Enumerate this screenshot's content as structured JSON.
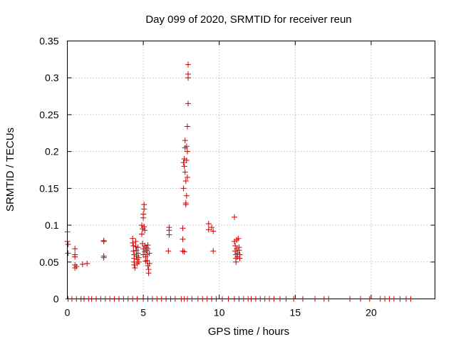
{
  "chart_data": {
    "type": "scatter",
    "title": "Day 099 of 2020, SRMTID for receiver reun",
    "xlabel": "GPS time / hours",
    "ylabel": "SRMTID / TECUs",
    "xlim": [
      0,
      24.2
    ],
    "ylim": [
      0,
      0.35
    ],
    "xticks": [
      0,
      5,
      10,
      15,
      20
    ],
    "yticks": [
      0,
      0.05,
      0.1,
      0.15,
      0.2,
      0.25,
      0.3,
      0.35
    ],
    "ytick_labels": [
      "0",
      "0.05",
      "0.1",
      "0.15",
      "0.2",
      "0.25",
      "0.3",
      "0.35"
    ],
    "grid": true,
    "marker": "+",
    "color": "#cc0000",
    "series": [
      {
        "name": "SRMTID",
        "points": [
          [
            0.0,
            0.091
          ],
          [
            0.0,
            0.078
          ],
          [
            0.05,
            0.074
          ],
          [
            0.05,
            0.062
          ],
          [
            0.05,
            0.0
          ],
          [
            0.5,
            0.068
          ],
          [
            0.5,
            0.06
          ],
          [
            0.5,
            0.057
          ],
          [
            0.5,
            0.046
          ],
          [
            0.5,
            0.042
          ],
          [
            0.6,
            0.044
          ],
          [
            0.3,
            0.0
          ],
          [
            0.6,
            0.0
          ],
          [
            0.9,
            0.0
          ],
          [
            1.0,
            0.047
          ],
          [
            1.3,
            0.048
          ],
          [
            1.1,
            0.0
          ],
          [
            1.4,
            0.0
          ],
          [
            1.6,
            0.0
          ],
          [
            1.9,
            0.0
          ],
          [
            2.4,
            0.079
          ],
          [
            2.4,
            0.078
          ],
          [
            2.4,
            0.058
          ],
          [
            2.4,
            0.056
          ],
          [
            2.2,
            0.0
          ],
          [
            2.5,
            0.0
          ],
          [
            2.8,
            0.0
          ],
          [
            3.1,
            0.0
          ],
          [
            3.4,
            0.0
          ],
          [
            3.7,
            0.0
          ],
          [
            4.0,
            0.0
          ],
          [
            4.3,
            0.082
          ],
          [
            4.3,
            0.076
          ],
          [
            4.35,
            0.072
          ],
          [
            4.35,
            0.065
          ],
          [
            4.4,
            0.06
          ],
          [
            4.4,
            0.055
          ],
          [
            4.4,
            0.05
          ],
          [
            4.4,
            0.046
          ],
          [
            4.45,
            0.042
          ],
          [
            4.5,
            0.078
          ],
          [
            4.5,
            0.071
          ],
          [
            4.55,
            0.066
          ],
          [
            4.55,
            0.058
          ],
          [
            4.6,
            0.053
          ],
          [
            4.6,
            0.048
          ],
          [
            4.65,
            0.07
          ],
          [
            4.65,
            0.062
          ],
          [
            4.7,
            0.056
          ],
          [
            4.7,
            0.05
          ],
          [
            4.3,
            0.0
          ],
          [
            4.6,
            0.0
          ],
          [
            4.9,
            0.1
          ],
          [
            4.9,
            0.088
          ],
          [
            4.95,
            0.095
          ],
          [
            4.95,
            0.075
          ],
          [
            5.0,
            0.115
          ],
          [
            5.0,
            0.11
          ],
          [
            5.0,
            0.068
          ],
          [
            5.0,
            0.06
          ],
          [
            5.05,
            0.128
          ],
          [
            5.05,
            0.122
          ],
          [
            5.05,
            0.098
          ],
          [
            5.1,
            0.093
          ],
          [
            5.1,
            0.072
          ],
          [
            5.1,
            0.064
          ],
          [
            5.15,
            0.057
          ],
          [
            5.15,
            0.051
          ],
          [
            5.2,
            0.07
          ],
          [
            5.2,
            0.066
          ],
          [
            5.25,
            0.06
          ],
          [
            5.25,
            0.052
          ],
          [
            5.3,
            0.073
          ],
          [
            5.3,
            0.068
          ],
          [
            5.3,
            0.045
          ],
          [
            5.35,
            0.04
          ],
          [
            5.35,
            0.035
          ],
          [
            5.4,
            0.048
          ],
          [
            5.4,
            0.062
          ],
          [
            5.0,
            0.0
          ],
          [
            5.3,
            0.0
          ],
          [
            5.6,
            0.0
          ],
          [
            5.9,
            0.0
          ],
          [
            6.2,
            0.0
          ],
          [
            6.5,
            0.0
          ],
          [
            6.7,
            0.097
          ],
          [
            6.7,
            0.093
          ],
          [
            6.7,
            0.087
          ],
          [
            6.65,
            0.065
          ],
          [
            6.8,
            0.0
          ],
          [
            7.1,
            0.0
          ],
          [
            7.5,
            0.0
          ],
          [
            7.6,
            0.096
          ],
          [
            7.6,
            0.081
          ],
          [
            7.6,
            0.065
          ],
          [
            7.7,
            0.064
          ],
          [
            7.65,
            0.15
          ],
          [
            7.65,
            0.185
          ],
          [
            7.7,
            0.19
          ],
          [
            7.7,
            0.18
          ],
          [
            7.75,
            0.215
          ],
          [
            7.75,
            0.205
          ],
          [
            7.75,
            0.172
          ],
          [
            7.8,
            0.16
          ],
          [
            7.8,
            0.13
          ],
          [
            7.8,
            0.128
          ],
          [
            7.85,
            0.207
          ],
          [
            7.85,
            0.188
          ],
          [
            7.85,
            0.14
          ],
          [
            7.9,
            0.234
          ],
          [
            7.9,
            0.2
          ],
          [
            7.9,
            0.165
          ],
          [
            7.95,
            0.318
          ],
          [
            7.95,
            0.305
          ],
          [
            7.95,
            0.3
          ],
          [
            7.95,
            0.265
          ],
          [
            7.7,
            0.0
          ],
          [
            7.9,
            0.0
          ],
          [
            8.2,
            0.0
          ],
          [
            8.6,
            0.0
          ],
          [
            8.9,
            0.0
          ],
          [
            9.3,
            0.102
          ],
          [
            9.3,
            0.094
          ],
          [
            9.5,
            0.097
          ],
          [
            9.6,
            0.092
          ],
          [
            9.6,
            0.065
          ],
          [
            9.2,
            0.0
          ],
          [
            9.5,
            0.0
          ],
          [
            9.8,
            0.0
          ],
          [
            10.2,
            0.0
          ],
          [
            10.6,
            0.0
          ],
          [
            11.0,
            0.111
          ],
          [
            11.0,
            0.078
          ],
          [
            11.05,
            0.072
          ],
          [
            11.05,
            0.065
          ],
          [
            11.1,
            0.06
          ],
          [
            11.1,
            0.055
          ],
          [
            11.1,
            0.05
          ],
          [
            11.15,
            0.08
          ],
          [
            11.15,
            0.068
          ],
          [
            11.2,
            0.062
          ],
          [
            11.2,
            0.057
          ],
          [
            11.25,
            0.082
          ],
          [
            11.3,
            0.07
          ],
          [
            11.3,
            0.066
          ],
          [
            11.35,
            0.06
          ],
          [
            11.35,
            0.055
          ],
          [
            11.0,
            0.0
          ],
          [
            11.3,
            0.0
          ],
          [
            11.6,
            0.0
          ],
          [
            11.9,
            0.0
          ],
          [
            12.1,
            0.0
          ],
          [
            12.4,
            0.0
          ],
          [
            12.7,
            0.0
          ],
          [
            13.0,
            0.0
          ],
          [
            13.3,
            0.0
          ],
          [
            13.6,
            0.0
          ],
          [
            14.0,
            0.0
          ],
          [
            14.4,
            0.0
          ],
          [
            14.9,
            0.0
          ],
          [
            15.5,
            0.0
          ],
          [
            16.3,
            0.0
          ],
          [
            16.9,
            0.0
          ],
          [
            17.2,
            0.0
          ],
          [
            18.6,
            0.0
          ],
          [
            19.3,
            0.0
          ],
          [
            19.9,
            0.0
          ],
          [
            20.6,
            0.0
          ],
          [
            20.9,
            0.0
          ],
          [
            21.2,
            0.0
          ],
          [
            21.5,
            0.0
          ],
          [
            21.9,
            0.0
          ],
          [
            22.3,
            0.0
          ],
          [
            22.6,
            0.0
          ]
        ]
      }
    ]
  }
}
